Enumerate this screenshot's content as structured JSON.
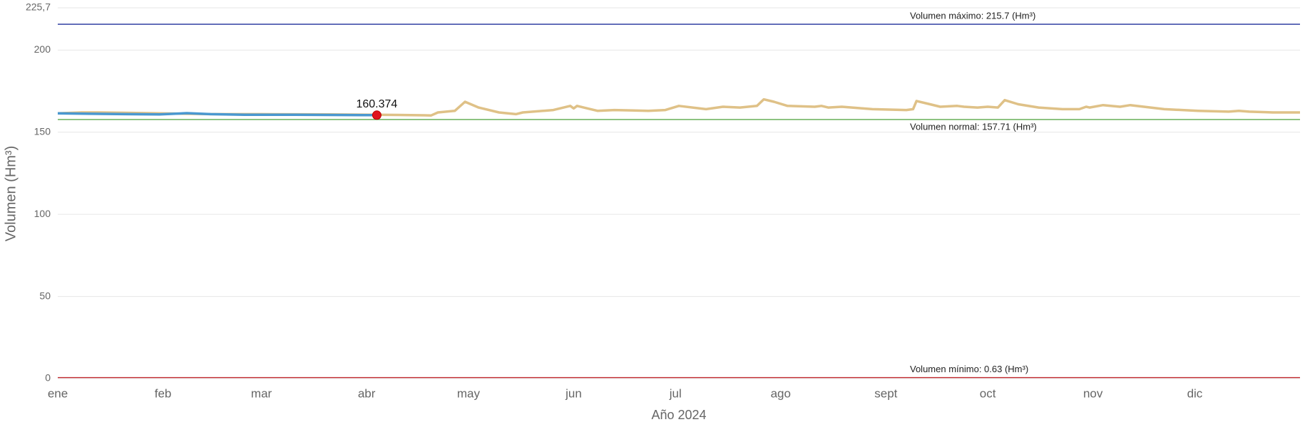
{
  "chart_data": {
    "type": "line",
    "x_label": "Año 2024",
    "y_label": "Volumen (Hm³)",
    "xlim": [
      0,
      366
    ],
    "xticks": [
      {
        "value": 0,
        "label": "ene"
      },
      {
        "value": 31,
        "label": "feb"
      },
      {
        "value": 60,
        "label": "mar"
      },
      {
        "value": 91,
        "label": "abr"
      },
      {
        "value": 121,
        "label": "may"
      },
      {
        "value": 152,
        "label": "jun"
      },
      {
        "value": 182,
        "label": "jul"
      },
      {
        "value": 213,
        "label": "ago"
      },
      {
        "value": 244,
        "label": "sept"
      },
      {
        "value": 274,
        "label": "oct"
      },
      {
        "value": 305,
        "label": "nov"
      },
      {
        "value": 335,
        "label": "dic"
      }
    ],
    "ylim": [
      0,
      225.7
    ],
    "yticks": [
      0,
      50,
      100,
      150,
      200,
      {
        "value": 225.7,
        "label": "225,7"
      }
    ],
    "grid": true,
    "series": [
      {
        "color": "#4a98d0",
        "x": [
          0,
          10,
          20,
          30,
          38,
          45,
          55,
          70,
          80,
          94
        ],
        "values": [
          161.5,
          161.2,
          161,
          160.8,
          161.6,
          161,
          160.6,
          160.6,
          160.5,
          160.374
        ],
        "value_labels": [
          null,
          null,
          null,
          null,
          null,
          null,
          null,
          null,
          null,
          "160.374"
        ]
      },
      {
        "color": "#dfc187",
        "x": [
          0,
          7,
          12,
          20,
          30,
          45,
          60,
          80,
          100,
          108,
          110,
          112,
          117,
          120,
          124,
          130,
          135,
          137,
          146,
          151,
          152,
          153,
          157,
          159,
          164,
          174,
          179,
          183,
          191,
          196,
          201,
          206,
          208,
          211,
          215,
          223,
          225,
          227,
          231,
          240,
          250,
          252,
          253,
          257,
          260,
          265,
          267,
          271,
          274,
          277,
          279,
          283,
          289,
          296,
          301,
          303,
          304,
          308,
          313,
          316,
          326,
          336,
          345,
          348,
          351,
          358,
          366
        ],
        "values": [
          161.5,
          162,
          162,
          161.8,
          161.5,
          161,
          161,
          160.8,
          160.5,
          160.3,
          160.2,
          162,
          163,
          168.5,
          165,
          162,
          161,
          162,
          163.5,
          166,
          164.5,
          166,
          164,
          163,
          163.5,
          163,
          163.5,
          166,
          164,
          165.5,
          165,
          166,
          170,
          168.5,
          166,
          165.5,
          166,
          165,
          165.5,
          164,
          163.5,
          164,
          169,
          167,
          165.5,
          166,
          165.5,
          165,
          165.5,
          165,
          169.5,
          167,
          165,
          164,
          164,
          165.5,
          165,
          166.5,
          165.5,
          166.5,
          164,
          163,
          162.5,
          163,
          162.5,
          162,
          162
        ]
      }
    ],
    "reference_lines": [
      {
        "value": 215.7,
        "label": "Volumen máximo: 215.7 (Hm³)",
        "color": "#1f2d9a"
      },
      {
        "value": 157.71,
        "label": "Volumen normal: 157.71 (Hm³)",
        "color": "#5aa84a"
      },
      {
        "value": 0.63,
        "label": "Volumen mínimo: 0.63 (Hm³)",
        "color": "#c0282d"
      }
    ]
  }
}
